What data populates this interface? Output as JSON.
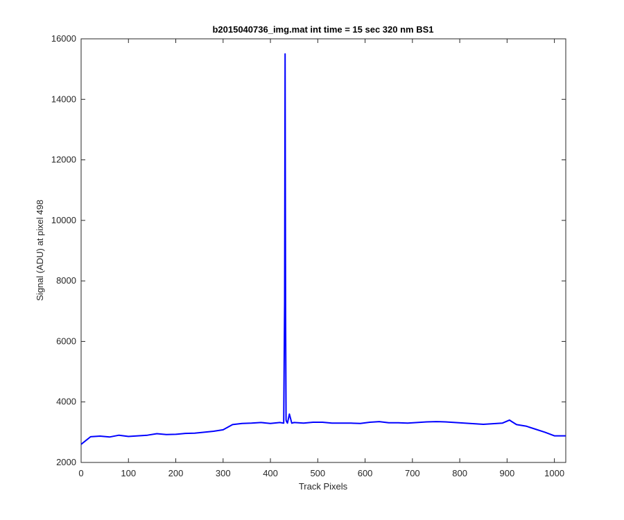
{
  "chart_data": {
    "type": "line",
    "title": "b2015040736_img.mat int time = 15 sec  320 nm BS1",
    "xlabel": "Track Pixels",
    "ylabel": "Signal (ADU) at pixel 498",
    "xlim": [
      0,
      1024
    ],
    "ylim": [
      2000,
      16000
    ],
    "xticks": [
      0,
      100,
      200,
      300,
      400,
      500,
      600,
      700,
      800,
      900,
      1000
    ],
    "yticks": [
      2000,
      4000,
      6000,
      8000,
      10000,
      12000,
      14000,
      16000
    ],
    "grid": false,
    "line_color": "#0000ff",
    "series": [
      {
        "x": [
          0,
          20,
          40,
          60,
          80,
          100,
          120,
          140,
          160,
          180,
          200,
          220,
          240,
          260,
          280,
          300,
          320,
          340,
          360,
          380,
          400,
          420,
          428,
          430,
          431,
          432,
          433,
          434,
          436,
          440,
          445,
          450,
          470,
          490,
          510,
          530,
          550,
          570,
          590,
          610,
          630,
          650,
          670,
          690,
          710,
          730,
          750,
          770,
          790,
          810,
          830,
          850,
          870,
          890,
          905,
          910,
          920,
          940,
          960,
          980,
          1000,
          1024
        ],
        "values": [
          2600,
          2850,
          2870,
          2840,
          2900,
          2860,
          2880,
          2900,
          2950,
          2920,
          2930,
          2960,
          2970,
          3000,
          3030,
          3080,
          3250,
          3290,
          3300,
          3320,
          3290,
          3320,
          3300,
          7300,
          15500,
          6900,
          3400,
          3350,
          3300,
          3600,
          3300,
          3320,
          3300,
          3330,
          3330,
          3300,
          3300,
          3300,
          3290,
          3330,
          3350,
          3310,
          3310,
          3300,
          3320,
          3340,
          3350,
          3340,
          3320,
          3300,
          3280,
          3260,
          3280,
          3300,
          3400,
          3350,
          3250,
          3200,
          3100,
          3000,
          2880,
          2880
        ]
      }
    ]
  }
}
